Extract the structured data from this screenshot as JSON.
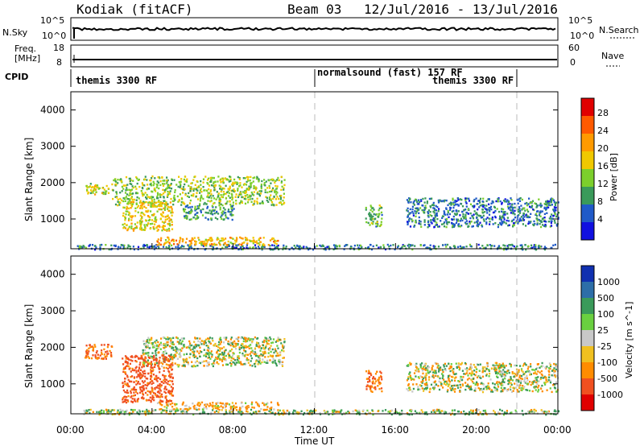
{
  "header": {
    "station": "Kodiak (fitACF)",
    "beam": "Beam 03",
    "date_range": "12/Jul/2016 - 13/Jul/2016"
  },
  "nsky_panel": {
    "left_label": "N.Sky",
    "right_label": "N.Search",
    "left_ticks": [
      "10^5",
      "10^0"
    ],
    "right_ticks": [
      "10^5",
      "10^0"
    ]
  },
  "freq_panel": {
    "left_label_line1": "Freq.",
    "left_label_line2": "[MHz]",
    "right_label": "Nave",
    "left_ticks": [
      "18",
      "8"
    ],
    "right_ticks": [
      "60",
      "0"
    ]
  },
  "cpid_panel": {
    "label": "CPID",
    "segments": [
      "themis 3300 RF",
      "normalsound (fast) 157 RF",
      "themis 3300 RF"
    ]
  },
  "power_colorbar": {
    "label": "Power [dB]",
    "ticks": [
      "28",
      "24",
      "20",
      "16",
      "12",
      "8",
      "4"
    ],
    "colors": [
      "#e00000",
      "#ff5a00",
      "#ff9a00",
      "#f0c800",
      "#7ccf2c",
      "#3a9a5a",
      "#205ac8",
      "#1010e0"
    ]
  },
  "velocity_colorbar": {
    "label": "Velocity [m s^-1]",
    "ticks": [
      "1000",
      "500",
      "100",
      "25",
      "-25",
      "-100",
      "-500",
      "-1000"
    ],
    "colors": [
      "#1030b0",
      "#2d6ea8",
      "#3a9a5a",
      "#6ad040",
      "#c8c8c8",
      "#f0c020",
      "#ff8c00",
      "#f05020",
      "#e00000"
    ]
  },
  "axes": {
    "ylabel": "Slant Range [km]",
    "yticks": [
      "4000",
      "3000",
      "2000",
      "1000"
    ],
    "xlabel": "Time UT",
    "xticks": [
      "00:00",
      "04:00",
      "08:00",
      "12:00",
      "16:00",
      "20:00",
      "00:00"
    ]
  },
  "chart_data": [
    {
      "type": "heatmap",
      "title": "Power",
      "xlabel": "",
      "ylabel": "Slant Range [km]",
      "xlim": [
        0,
        24
      ],
      "ylim": [
        180,
        4500
      ],
      "grid": false,
      "notes": "Scatter echo blobs; x in hours UT, y in km, value in dB",
      "blobs": [
        {
          "x": [
            0.3,
            24
          ],
          "y": [
            180,
            320
          ],
          "value": 8
        },
        {
          "x": [
            4.2,
            10.2
          ],
          "y": [
            300,
            520
          ],
          "value": 20
        },
        {
          "x": [
            2.0,
            10.5
          ],
          "y": [
            1400,
            2200
          ],
          "value": 14
        },
        {
          "x": [
            0.6,
            2.0
          ],
          "y": [
            1700,
            2000
          ],
          "value": 16
        },
        {
          "x": [
            2.5,
            5.0
          ],
          "y": [
            700,
            1500
          ],
          "value": 18
        },
        {
          "x": [
            14.5,
            15.3
          ],
          "y": [
            800,
            1400
          ],
          "value": 12
        },
        {
          "x": [
            16.5,
            24
          ],
          "y": [
            800,
            1600
          ],
          "value": 8
        },
        {
          "x": [
            5.5,
            8.0
          ],
          "y": [
            1000,
            1400
          ],
          "value": 10
        }
      ]
    },
    {
      "type": "heatmap",
      "title": "Velocity",
      "xlabel": "Time UT",
      "ylabel": "Slant Range [km]",
      "xlim": [
        0,
        24
      ],
      "ylim": [
        180,
        4500
      ],
      "grid": false,
      "notes": "Doppler velocity; x in hours UT, y in km, value in m/s",
      "blobs": [
        {
          "x": [
            0.3,
            24
          ],
          "y": [
            180,
            320
          ],
          "value": 50
        },
        {
          "x": [
            4.2,
            10.2
          ],
          "y": [
            300,
            520
          ],
          "value": -100
        },
        {
          "x": [
            3.5,
            10.5
          ],
          "y": [
            1500,
            2300
          ],
          "value": 0
        },
        {
          "x": [
            0.6,
            2.0
          ],
          "y": [
            1700,
            2100
          ],
          "value": -300
        },
        {
          "x": [
            2.5,
            5.0
          ],
          "y": [
            500,
            1800
          ],
          "value": -400
        },
        {
          "x": [
            14.5,
            15.3
          ],
          "y": [
            800,
            1400
          ],
          "value": -300
        },
        {
          "x": [
            16.5,
            24
          ],
          "y": [
            800,
            1600
          ],
          "value": 0
        }
      ]
    }
  ]
}
